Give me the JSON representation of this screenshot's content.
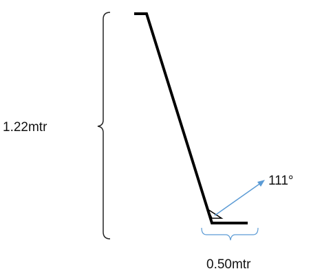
{
  "dimensions": {
    "height": {
      "label": "1.22mtr"
    },
    "angle": {
      "label": "111°"
    },
    "base": {
      "label": "0.50mtr"
    }
  }
}
